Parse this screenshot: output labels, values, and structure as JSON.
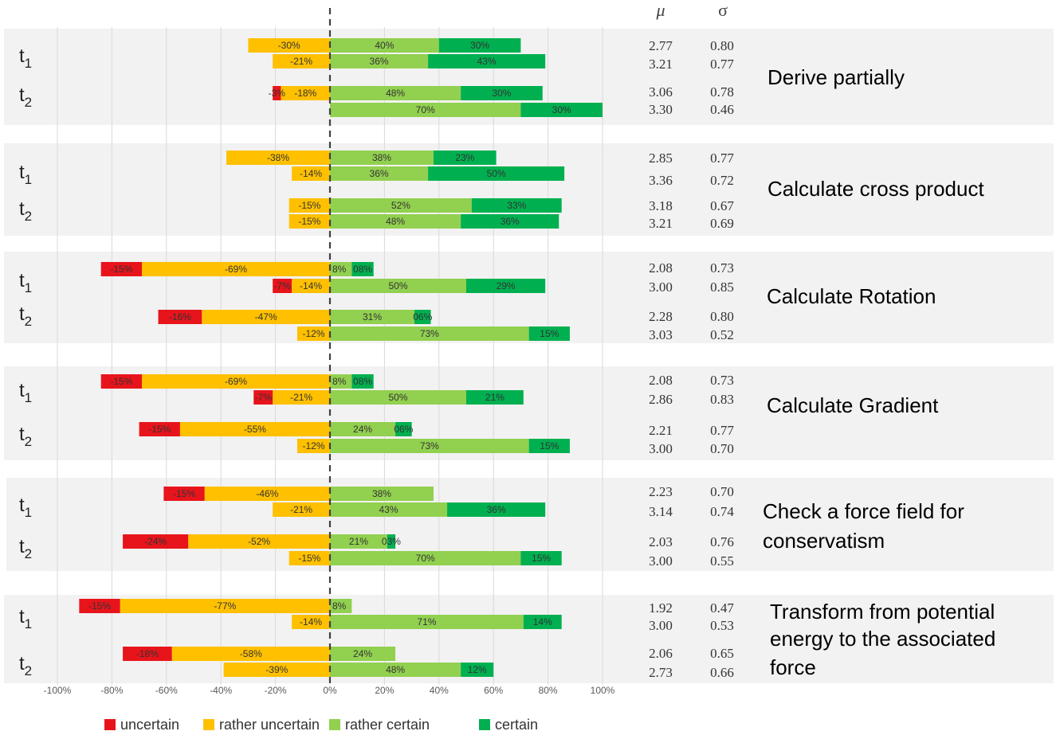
{
  "chart_data": {
    "type": "bar",
    "orientation": "horizontal",
    "stacked": "diverging",
    "xlim": [
      -100,
      100
    ],
    "x_ticks": [
      "-100%",
      "-80%",
      "-60%",
      "-40%",
      "-20%",
      "0%",
      "20%",
      "40%",
      "60%",
      "80%",
      "100%"
    ],
    "stat_headers": {
      "mean": "μ",
      "sd": "σ"
    },
    "legend": [
      {
        "key": "uncertain",
        "label": "uncertain",
        "color": "#e8141b"
      },
      {
        "key": "rather_uncertain",
        "label": "rather uncertain",
        "color": "#ffc000"
      },
      {
        "key": "rather_certain",
        "label": "rather certain",
        "color": "#92d050"
      },
      {
        "key": "certain",
        "label": "certain",
        "color": "#00b050"
      }
    ],
    "groups": [
      {
        "title_lines": [
          "Derive partially"
        ],
        "time_labels": [
          {
            "main": "t",
            "sub": "1"
          },
          {
            "main": "t",
            "sub": "2"
          }
        ],
        "rows": [
          {
            "time": 0,
            "uncertain": 0,
            "rather_uncertain": 30,
            "rather_certain": 40,
            "certain": 30,
            "labels": [
              "",
              "-30%",
              "40%",
              "30%"
            ],
            "mean": "2.77",
            "sd": "0.80"
          },
          {
            "time": 0,
            "uncertain": 0,
            "rather_uncertain": 21,
            "rather_certain": 36,
            "certain": 43,
            "labels": [
              "",
              "-21%",
              "36%",
              "43%"
            ],
            "mean": "3.21",
            "sd": "0.77"
          },
          {
            "time": 1,
            "uncertain": 3,
            "rather_uncertain": 18,
            "rather_certain": 48,
            "certain": 30,
            "labels": [
              "-3%",
              "-18%",
              "48%",
              "30%"
            ],
            "mean": "3.06",
            "sd": "0.78"
          },
          {
            "time": 1,
            "uncertain": 0,
            "rather_uncertain": 0,
            "rather_certain": 70,
            "certain": 30,
            "labels": [
              "",
              "",
              "70%",
              "30%"
            ],
            "mean": "3.30",
            "sd": "0.46"
          }
        ]
      },
      {
        "title_lines": [
          "Calculate cross product"
        ],
        "time_labels": [
          {
            "main": "t",
            "sub": "1"
          },
          {
            "main": "t",
            "sub": "2"
          }
        ],
        "rows": [
          {
            "time": 0,
            "uncertain": 0,
            "rather_uncertain": 38,
            "rather_certain": 38,
            "certain": 23,
            "labels": [
              "",
              "-38%",
              "38%",
              "23%"
            ],
            "mean": "2.85",
            "sd": "0.77"
          },
          {
            "time": 0,
            "uncertain": 0,
            "rather_uncertain": 14,
            "rather_certain": 36,
            "certain": 50,
            "labels": [
              "",
              "-14%",
              "36%",
              "50%"
            ],
            "mean": "3.36",
            "sd": "0.72"
          },
          {
            "time": 1,
            "uncertain": 0,
            "rather_uncertain": 15,
            "rather_certain": 52,
            "certain": 33,
            "labels": [
              "",
              "-15%",
              "52%",
              "33%"
            ],
            "mean": "3.18",
            "sd": "0.67"
          },
          {
            "time": 1,
            "uncertain": 0,
            "rather_uncertain": 15,
            "rather_certain": 48,
            "certain": 36,
            "labels": [
              "",
              "-15%",
              "48%",
              "36%"
            ],
            "mean": "3.21",
            "sd": "0.69"
          }
        ]
      },
      {
        "title_lines": [
          "Calculate Rotation"
        ],
        "time_labels": [
          {
            "main": "t",
            "sub": "1"
          },
          {
            "main": "t",
            "sub": "2"
          }
        ],
        "rows": [
          {
            "time": 0,
            "uncertain": 15,
            "rather_uncertain": 69,
            "rather_certain": 8,
            "certain": 8,
            "labels": [
              "-15%",
              "-69%",
              "8%",
              "08%"
            ],
            "mean": "2.08",
            "sd": "0.73"
          },
          {
            "time": 0,
            "uncertain": 7,
            "rather_uncertain": 14,
            "rather_certain": 50,
            "certain": 29,
            "labels": [
              "-7%",
              "-14%",
              "50%",
              "29%"
            ],
            "mean": "3.00",
            "sd": "0.85"
          },
          {
            "time": 1,
            "uncertain": 16,
            "rather_uncertain": 47,
            "rather_certain": 31,
            "certain": 6,
            "labels": [
              "-16%",
              "-47%",
              "31%",
              "06%"
            ],
            "mean": "2.28",
            "sd": "0.80"
          },
          {
            "time": 1,
            "uncertain": 0,
            "rather_uncertain": 12,
            "rather_certain": 73,
            "certain": 15,
            "labels": [
              "",
              "-12%",
              "73%",
              "15%"
            ],
            "mean": "3.03",
            "sd": "0.52"
          }
        ]
      },
      {
        "title_lines": [
          "Calculate Gradient"
        ],
        "time_labels": [
          {
            "main": "t",
            "sub": "1"
          },
          {
            "main": "t",
            "sub": "2"
          }
        ],
        "rows": [
          {
            "time": 0,
            "uncertain": 15,
            "rather_uncertain": 69,
            "rather_certain": 8,
            "certain": 8,
            "labels": [
              "-15%",
              "-69%",
              "8%",
              "08%"
            ],
            "mean": "2.08",
            "sd": "0.73"
          },
          {
            "time": 0,
            "uncertain": 7,
            "rather_uncertain": 21,
            "rather_certain": 50,
            "certain": 21,
            "labels": [
              "-7%",
              "-21%",
              "50%",
              "21%"
            ],
            "mean": "2.86",
            "sd": "0.83"
          },
          {
            "time": 1,
            "uncertain": 15,
            "rather_uncertain": 55,
            "rather_certain": 24,
            "certain": 6,
            "labels": [
              "-15%",
              "-55%",
              "24%",
              "06%"
            ],
            "mean": "2.21",
            "sd": "0.77"
          },
          {
            "time": 1,
            "uncertain": 0,
            "rather_uncertain": 12,
            "rather_certain": 73,
            "certain": 15,
            "labels": [
              "",
              "-12%",
              "73%",
              "15%"
            ],
            "mean": "3.00",
            "sd": "0.70"
          }
        ]
      },
      {
        "title_lines": [
          "Check a force field for",
          "conservatism"
        ],
        "time_labels": [
          {
            "main": "t",
            "sub": "1"
          },
          {
            "main": "t",
            "sub": "2"
          }
        ],
        "rows": [
          {
            "time": 0,
            "uncertain": 15,
            "rather_uncertain": 46,
            "rather_certain": 38,
            "certain": 0,
            "labels": [
              "-15%",
              "-46%",
              "38%",
              ""
            ],
            "mean": "2.23",
            "sd": "0.70"
          },
          {
            "time": 0,
            "uncertain": 0,
            "rather_uncertain": 21,
            "rather_certain": 43,
            "certain": 36,
            "labels": [
              "",
              "-21%",
              "43%",
              "36%"
            ],
            "mean": "3.14",
            "sd": "0.74"
          },
          {
            "time": 1,
            "uncertain": 24,
            "rather_uncertain": 52,
            "rather_certain": 21,
            "certain": 3,
            "labels": [
              "-24%",
              "-52%",
              "21%",
              "03%"
            ],
            "mean": "2.03",
            "sd": "0.76"
          },
          {
            "time": 1,
            "uncertain": 0,
            "rather_uncertain": 15,
            "rather_certain": 70,
            "certain": 15,
            "labels": [
              "",
              "-15%",
              "70%",
              "15%"
            ],
            "mean": "3.00",
            "sd": "0.55"
          }
        ]
      },
      {
        "title_lines": [
          "Transform from potential",
          "energy to the associated",
          "force"
        ],
        "time_labels": [
          {
            "main": "t",
            "sub": "1"
          },
          {
            "main": "t",
            "sub": "2"
          }
        ],
        "rows": [
          {
            "time": 0,
            "uncertain": 15,
            "rather_uncertain": 77,
            "rather_certain": 8,
            "certain": 0,
            "labels": [
              "-15%",
              "-77%",
              "8%",
              ""
            ],
            "mean": "1.92",
            "sd": "0.47"
          },
          {
            "time": 0,
            "uncertain": 0,
            "rather_uncertain": 14,
            "rather_certain": 71,
            "certain": 14,
            "labels": [
              "",
              "-14%",
              "71%",
              "14%"
            ],
            "mean": "3.00",
            "sd": "0.53"
          },
          {
            "time": 1,
            "uncertain": 18,
            "rather_uncertain": 58,
            "rather_certain": 24,
            "certain": 0,
            "labels": [
              "-18%",
              "-58%",
              "24%",
              ""
            ],
            "mean": "2.06",
            "sd": "0.65"
          },
          {
            "time": 1,
            "uncertain": 0,
            "rather_uncertain": 39,
            "rather_certain": 48,
            "certain": 12,
            "labels": [
              "",
              "-39%",
              "48%",
              "12%"
            ],
            "mean": "2.73",
            "sd": "0.66"
          }
        ]
      }
    ]
  }
}
